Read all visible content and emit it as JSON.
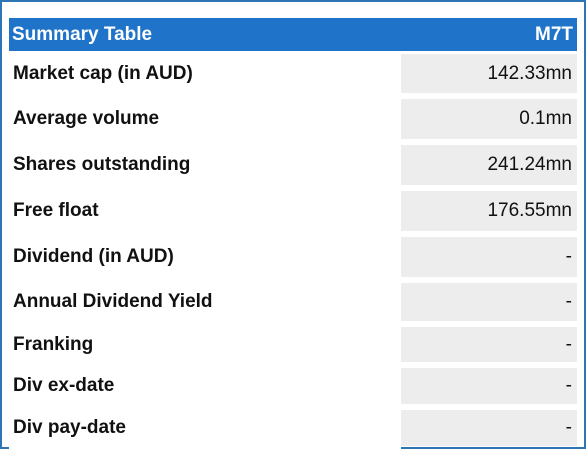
{
  "table": {
    "title": "Summary Table",
    "ticker": "M7T",
    "rows": [
      {
        "label": "Market cap (in AUD)",
        "value": "142.33mn"
      },
      {
        "label": "Average volume",
        "value": "0.1mn"
      },
      {
        "label": "Shares outstanding",
        "value": "241.24mn"
      },
      {
        "label": "Free float",
        "value": "176.55mn"
      },
      {
        "label": "Dividend (in AUD)",
        "value": "-"
      },
      {
        "label": "Annual Dividend Yield",
        "value": "-"
      },
      {
        "label": "Franking",
        "value": "-"
      },
      {
        "label": "Div ex-date",
        "value": "-"
      },
      {
        "label": "Div pay-date",
        "value": "-"
      }
    ]
  },
  "colors": {
    "header_bg": "#1f74c9",
    "border": "#2e75b6",
    "value_bg": "#ededed"
  }
}
